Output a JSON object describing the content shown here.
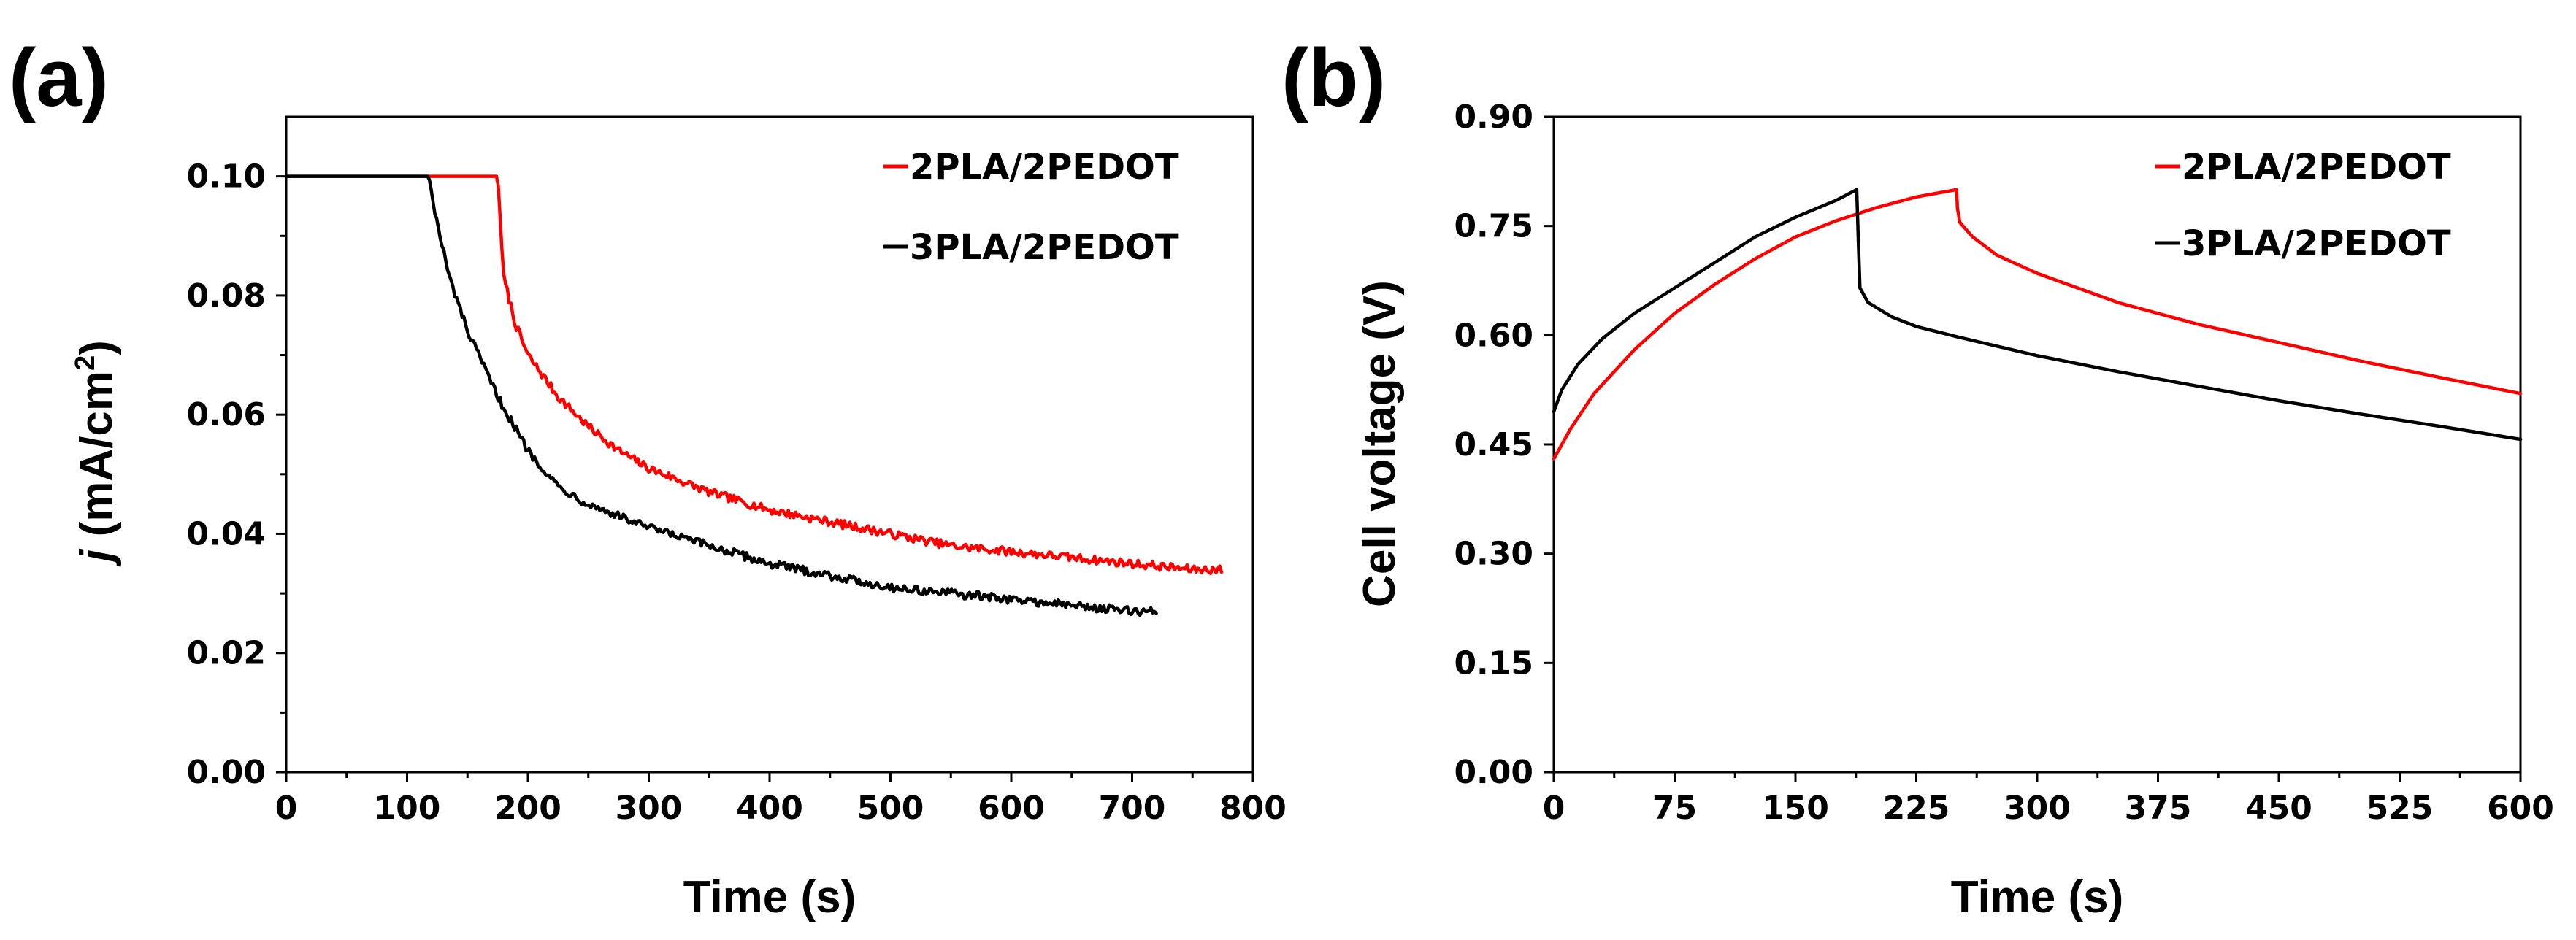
{
  "chart_data": [
    {
      "panel": "(a)",
      "type": "line",
      "title": "",
      "xlabel": "Time (s)",
      "ylabel_italic": "j",
      "ylabel_rest": " (mA/cm",
      "ylabel_sup": "2",
      "ylabel_close": ")",
      "xlim": [
        0,
        800
      ],
      "ylim": [
        0,
        0.11
      ],
      "xticks": [
        0,
        100,
        200,
        300,
        400,
        500,
        600,
        700,
        800
      ],
      "xtick_labels": [
        "0",
        "100",
        "200",
        "300",
        "400",
        "500",
        "600",
        "700",
        "800"
      ],
      "yticks": [
        0,
        0.02,
        0.04,
        0.06,
        0.08,
        0.1
      ],
      "ytick_labels": [
        "0.00",
        "0.02",
        "0.04",
        "0.06",
        "0.08",
        "0.10"
      ],
      "legend_position": "top-right",
      "series": [
        {
          "name": "2PLA/2PEDOT",
          "color": "#ff0000",
          "x": [
            0,
            100,
            175,
            180,
            190,
            200,
            225,
            250,
            275,
            300,
            350,
            400,
            450,
            500,
            550,
            600,
            650,
            700,
            750,
            775
          ],
          "y": [
            0.1,
            0.1,
            0.1,
            0.083,
            0.075,
            0.07,
            0.063,
            0.058,
            0.054,
            0.051,
            0.047,
            0.044,
            0.042,
            0.04,
            0.038,
            0.037,
            0.036,
            0.035,
            0.034,
            0.034
          ]
        },
        {
          "name": "3PLA/2PEDOT",
          "color": "#000000",
          "x": [
            0,
            100,
            118,
            125,
            135,
            150,
            175,
            200,
            225,
            250,
            300,
            350,
            400,
            450,
            500,
            550,
            600,
            650,
            700,
            720
          ],
          "y": [
            0.1,
            0.1,
            0.1,
            0.092,
            0.083,
            0.074,
            0.063,
            0.054,
            0.048,
            0.045,
            0.041,
            0.038,
            0.035,
            0.033,
            0.031,
            0.03,
            0.029,
            0.028,
            0.027,
            0.027
          ]
        }
      ]
    },
    {
      "panel": "(b)",
      "type": "line",
      "title": "",
      "xlabel": "Time (s)",
      "ylabel": "Cell voltage (V)",
      "xlim": [
        0,
        600
      ],
      "ylim": [
        0,
        0.9
      ],
      "xticks": [
        0,
        75,
        150,
        225,
        300,
        375,
        450,
        525,
        600
      ],
      "xtick_labels": [
        "0",
        "75",
        "150",
        "225",
        "300",
        "375",
        "450",
        "525",
        "600"
      ],
      "yticks": [
        0,
        0.15,
        0.3,
        0.45,
        0.6,
        0.75,
        0.9
      ],
      "ytick_labels": [
        "0.00",
        "0.15",
        "0.30",
        "0.45",
        "0.60",
        "0.75",
        "0.90"
      ],
      "legend_position": "top-right",
      "series": [
        {
          "name": "2PLA/2PEDOT",
          "color": "#ff0000",
          "x": [
            0,
            10,
            25,
            50,
            75,
            100,
            125,
            150,
            175,
            200,
            225,
            250,
            250.5,
            252,
            260,
            275,
            300,
            350,
            400,
            450,
            500,
            550,
            600
          ],
          "y": [
            0.43,
            0.47,
            0.52,
            0.58,
            0.63,
            0.67,
            0.705,
            0.735,
            0.757,
            0.775,
            0.79,
            0.8,
            0.775,
            0.755,
            0.735,
            0.71,
            0.685,
            0.645,
            0.615,
            0.59,
            0.565,
            0.542,
            0.52
          ]
        },
        {
          "name": "3PLA/2PEDOT",
          "color": "#000000",
          "x": [
            0,
            5,
            15,
            30,
            50,
            75,
            100,
            125,
            150,
            175,
            188,
            189,
            190,
            195,
            210,
            225,
            250,
            300,
            350,
            400,
            450,
            500,
            550,
            600
          ],
          "y": [
            0.495,
            0.525,
            0.56,
            0.595,
            0.63,
            0.665,
            0.7,
            0.735,
            0.762,
            0.785,
            0.8,
            0.73,
            0.665,
            0.645,
            0.625,
            0.612,
            0.598,
            0.572,
            0.55,
            0.53,
            0.51,
            0.492,
            0.475,
            0.457
          ]
        }
      ]
    }
  ]
}
